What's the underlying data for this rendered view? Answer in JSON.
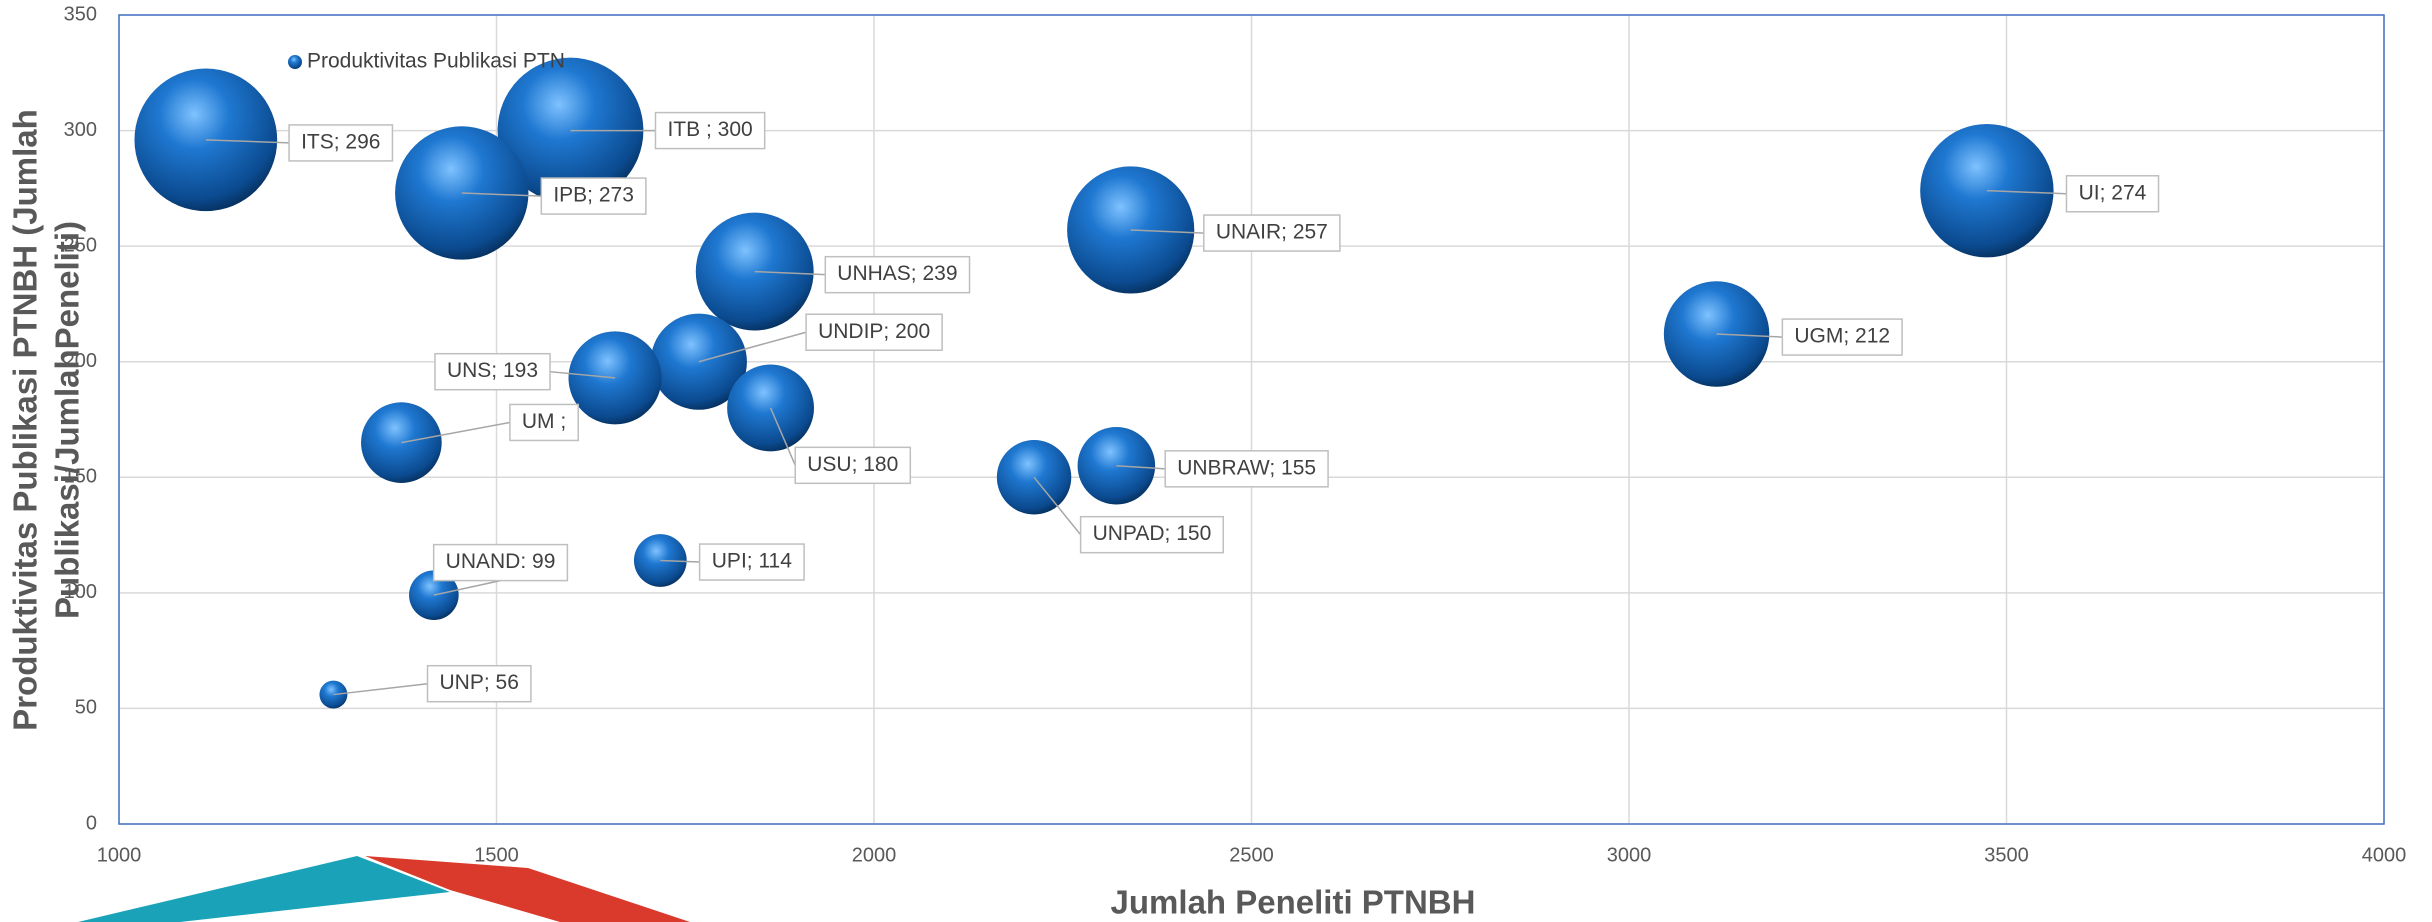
{
  "chart_data": {
    "type": "bubble",
    "x_label": "Jumlah Peneliti PTNBH",
    "y_label": [
      "Produktivitas Publikasi PTNBH (Jumlah",
      "Publikasi/JumlahPeneliti)"
    ],
    "series": [
      {
        "name": "Produktivitas Publikasi PTN",
        "color": "#1f78d1",
        "x": [
          1115,
          1598,
          1454,
          1842,
          2340,
          3474,
          3116,
          1768,
          1657,
          1863,
          1374,
          2321,
          2212,
          1717,
          1417,
          1284
        ],
        "values": [
          296,
          300,
          273,
          239,
          257,
          274,
          212,
          200,
          193,
          180,
          165,
          155,
          150,
          114,
          99,
          56
        ],
        "sizes": [
          2116,
          2209,
          1849,
          1444,
          1681,
          1849,
          1156,
          961,
          900,
          784,
          676,
          625,
          576,
          289,
          256,
          81
        ],
        "value_labels": [
          "ITS; 296",
          "ITB ; 300",
          "IPB; 273",
          "UNHAS; 239",
          "UNAIR; 257",
          "UI; 274",
          "UGM; 212",
          "UNDIP; 200",
          "UNS; 193",
          "USU; 180",
          "UM ;",
          "UNBRAW; 155",
          "UNPAD; 150",
          "UPI; 114",
          "UNAND: 99",
          "UNP; 56"
        ]
      }
    ],
    "xlim": [
      1000,
      4000
    ],
    "xticks": [
      1000,
      1500,
      2000,
      2500,
      3000,
      3500,
      4000
    ],
    "ylim": [
      0,
      350
    ],
    "yticks": [
      0,
      50,
      100,
      150,
      200,
      250,
      300,
      350
    ],
    "grid": true,
    "legend": "top-left"
  }
}
